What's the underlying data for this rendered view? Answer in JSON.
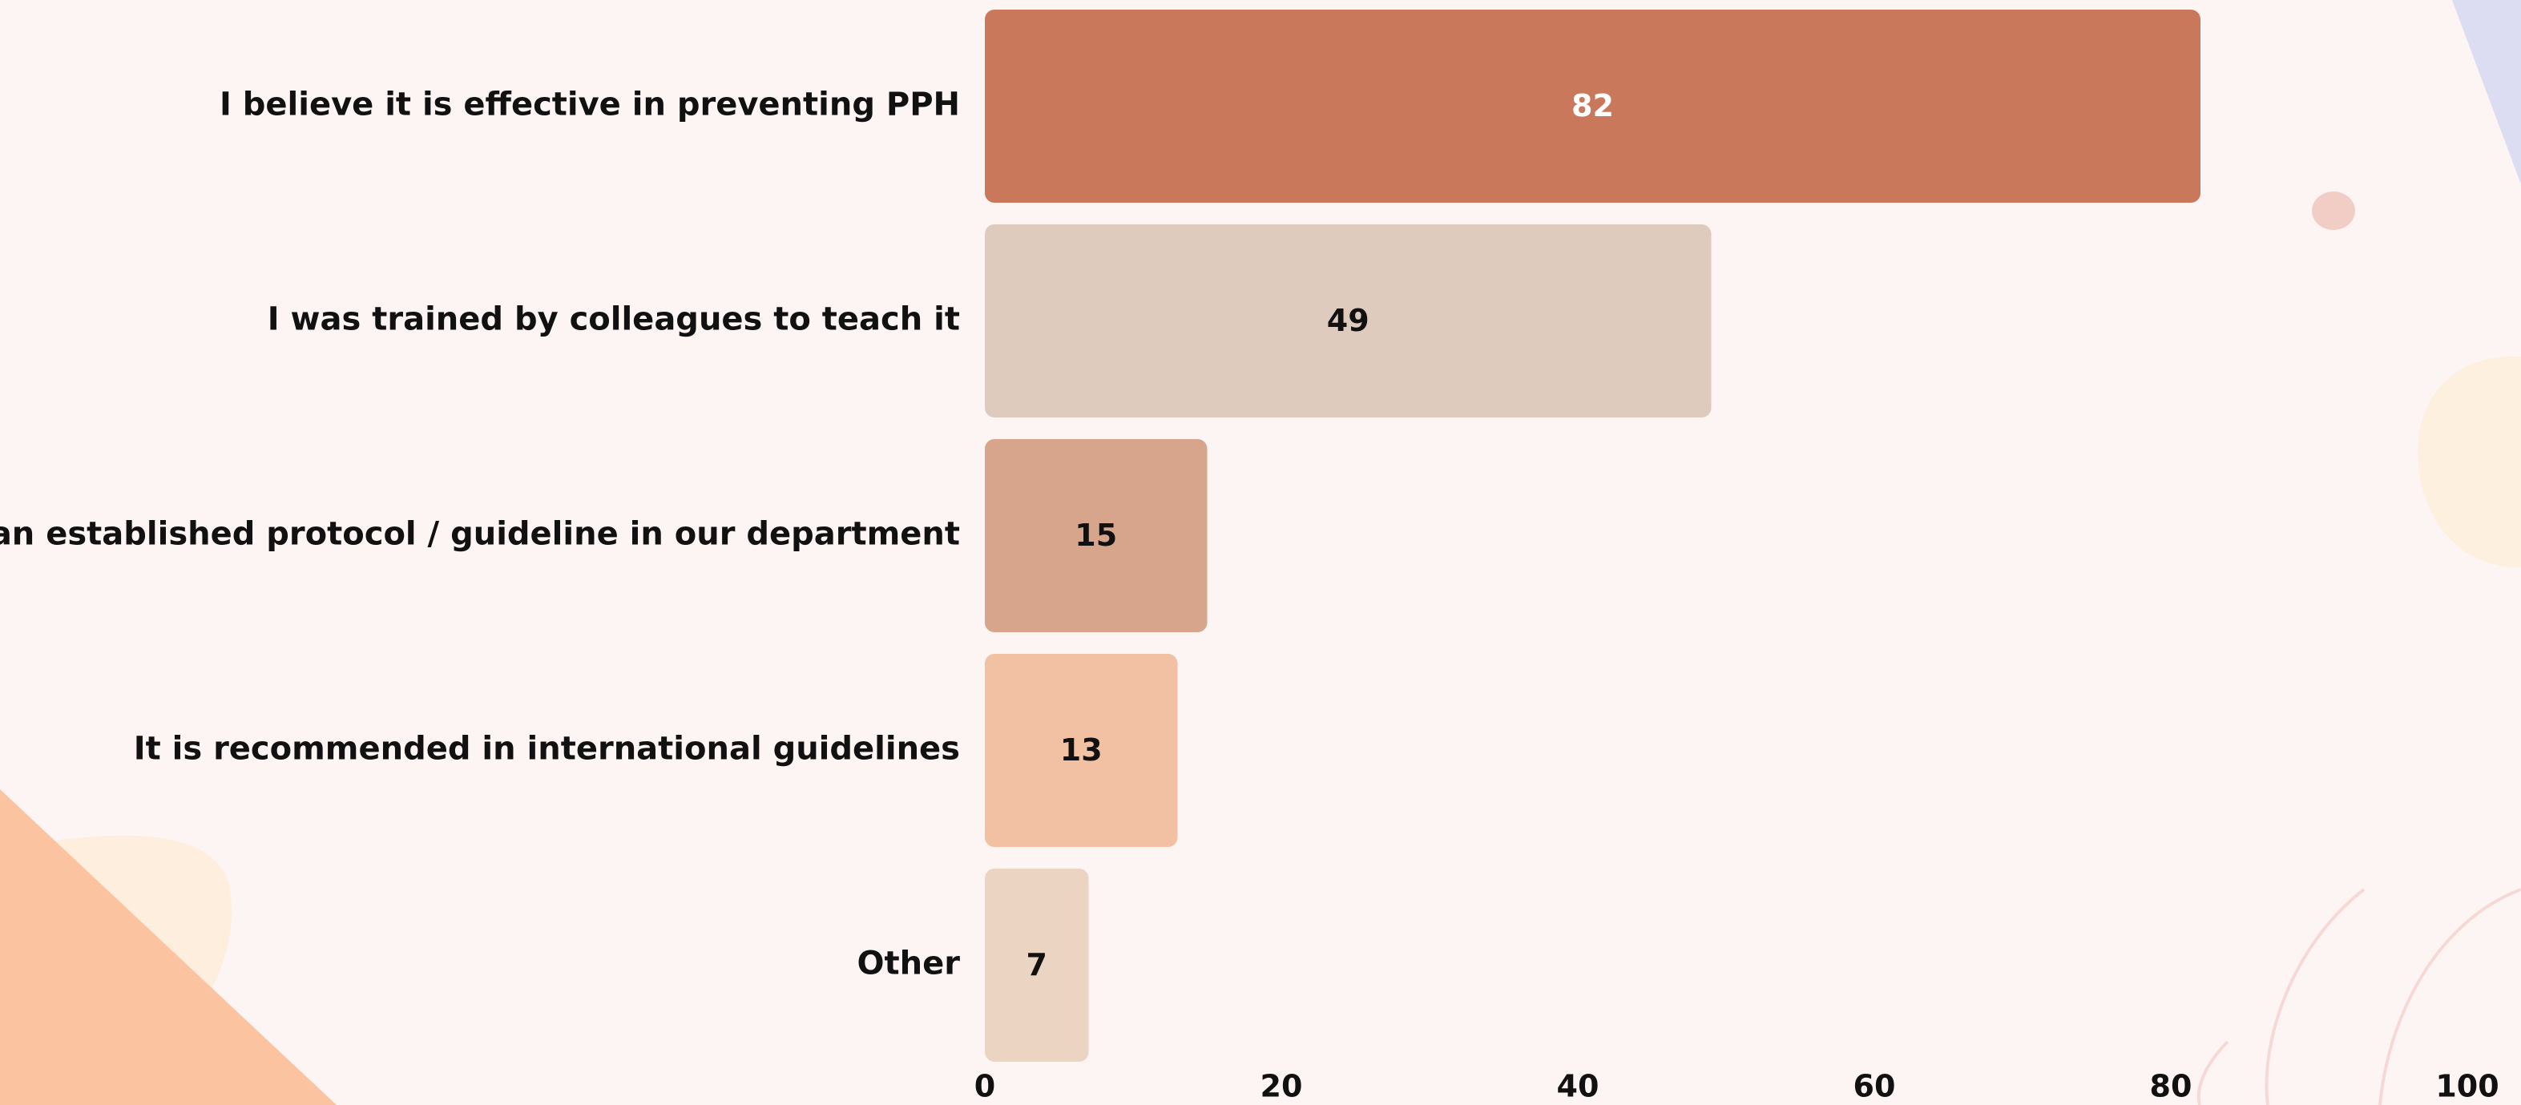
{
  "chart_data": {
    "type": "barh",
    "categories": [
      "I believe it is effective in preventing PPH",
      "I was trained by colleagues to teach it",
      "It is an established protocol / guideline in our department",
      "It is recommended in international guidelines",
      "Other"
    ],
    "values": [
      82,
      49,
      15,
      13,
      7
    ],
    "colors": [
      "#c9785b",
      "#dfcbbd",
      "#d6a58c",
      "#f2c0a3",
      "#ecd4c3"
    ],
    "xlim": [
      0,
      100
    ],
    "xticks": [
      0,
      20,
      40,
      60,
      80,
      100
    ],
    "grid": false
  }
}
